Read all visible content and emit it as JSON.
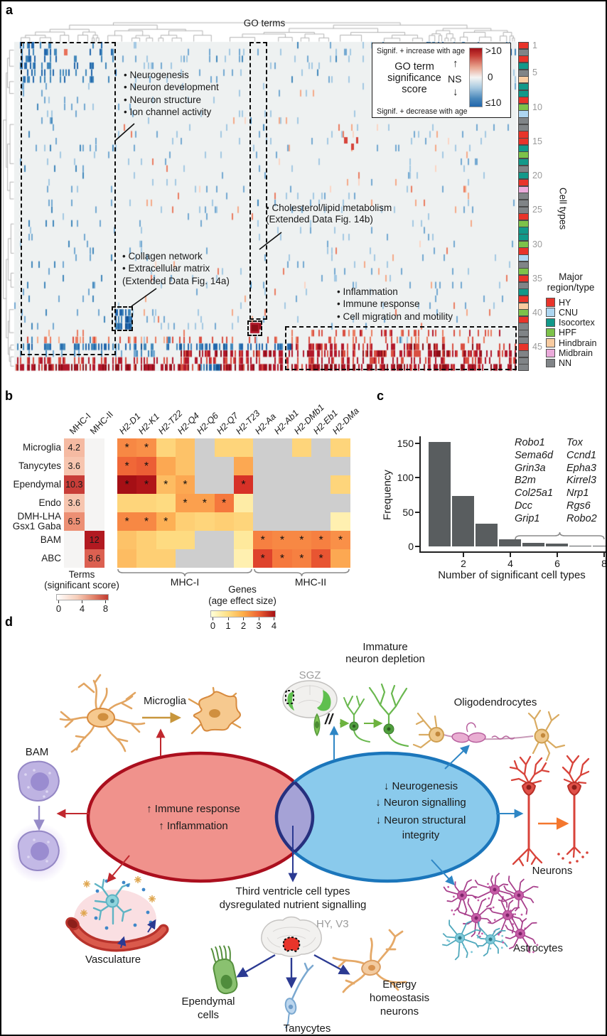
{
  "panel_a": {
    "label": "a",
    "go_terms_label": "GO terms",
    "cell_types_label": "Cell types",
    "row_ticks": [
      "1",
      "5",
      "10",
      "15",
      "20",
      "25",
      "30",
      "35",
      "40",
      "45"
    ],
    "legend": {
      "increase": "Signif. + increase with age",
      "decrease": "Signif. + decrease with age",
      "title": "GO term\nsignificance\nscore",
      "ns": "NS",
      "up": "↑",
      "down": "↓",
      "scale_max": ">10",
      "scale_mid": "0",
      "scale_min": "≤10"
    },
    "annotations": {
      "neuro": [
        "• Neurogenesis",
        "• Neuron development",
        "• Neuron structure",
        "• Ion channel activity"
      ],
      "collagen": [
        "• Collagen network",
        "• Extracellular matrix",
        "(Extended Data Fig. 14a)"
      ],
      "cholesterol": [
        "• Cholesterol/lipid metabolism",
        "(Extended Data Fig. 14b)"
      ],
      "inflammation": [
        "• Inflammation",
        "• Immune response",
        "• Cell migration and motility"
      ]
    },
    "region_legend": {
      "title": "Major\nregion/type",
      "items": [
        {
          "label": "HY",
          "color": "#e8342a"
        },
        {
          "label": "CNU",
          "color": "#aed6f1"
        },
        {
          "label": "Isocortex",
          "color": "#12998a"
        },
        {
          "label": "HPF",
          "color": "#7dc24a"
        },
        {
          "label": "Hindbrain",
          "color": "#f8cba0"
        },
        {
          "label": "Midbrain",
          "color": "#eaaada"
        },
        {
          "label": "NN",
          "color": "#808487"
        }
      ]
    },
    "cell_type_bar": [
      "HY",
      "NN",
      "HY",
      "Isocortex",
      "NN",
      "Hindbrain",
      "Isocortex",
      "Isocortex",
      "HY",
      "HPF",
      "CNU",
      "NN",
      "NN",
      "HY",
      "HY",
      "Isocortex",
      "HPF",
      "Isocortex",
      "NN",
      "Isocortex",
      "HY",
      "Midbrain",
      "NN",
      "NN",
      "NN",
      "HY",
      "HPF",
      "Isocortex",
      "Isocortex",
      "HPF",
      "HY",
      "CNU",
      "NN",
      "HPF",
      "HY",
      "NN",
      "Isocortex",
      "HY",
      "Hindbrain",
      "HPF",
      "HY",
      "NN",
      "NN",
      "NN",
      "HY",
      "NN",
      "NN",
      "NN"
    ]
  },
  "panel_b": {
    "label": "b",
    "group_labels": [
      "MHC-I",
      "MHC-II"
    ],
    "terms_legend": {
      "title": "Terms",
      "subtitle": "(significant score)",
      "ticks": [
        "0",
        "4",
        "8"
      ]
    },
    "genes_legend": {
      "title": "Genes",
      "subtitle": "(age effect size)",
      "ticks": [
        "0",
        "1",
        "2",
        "3",
        "4"
      ]
    }
  },
  "panel_c": {
    "label": "c"
  },
  "panel_d": {
    "label": "d",
    "labels": {
      "microglia": "Microglia",
      "bam": "BAM",
      "vasculature": "Vasculature",
      "sgz": "SGZ",
      "immature": "Immature\nneuron depletion",
      "oligodendrocytes": "Oligodendrocytes",
      "neurons": "Neurons",
      "astrocytes": "Astrocytes",
      "third_ventricle": "Third ventricle cell types\ndysregulated nutrient signalling",
      "hy_v3": "HY, V3",
      "ependymal": "Ependymal\ncells",
      "tanycytes": "Tanycytes",
      "energy": "Energy\nhomeostasis\nneurons",
      "break_symbol": "//"
    },
    "red_ellipse_items": [
      "↑ Immune response",
      "↑ Inflammation"
    ],
    "blue_ellipse_items": [
      "↓ Neurogenesis",
      "↓ Neuron signalling",
      "↓ Neuron structural\nintegrity"
    ]
  },
  "chart_data": [
    {
      "name": "go_term_significance_heatmap",
      "type": "heatmap",
      "title": "GO terms",
      "ylabel": "Cell types",
      "n_cell_types": 48,
      "colorbar_labels": {
        "max": ">10",
        "mid": "0",
        "min": "≤10"
      },
      "highlighted_clusters": [
        "Neurogenesis / Neuron development / Neuron structure / Ion channel activity (significant, decrease with age)",
        "Collagen network / Extracellular matrix (Extended Data Fig. 14a)",
        "Cholesterol/lipid metabolism (Extended Data Fig. 14b)",
        "Inflammation / Immune response / Cell migration and motility (significant, increase with age)"
      ]
    },
    {
      "name": "mhc_terms_scores",
      "type": "heatmap",
      "rows": [
        "Microglia",
        "Tanycytes",
        "Ependymal",
        "Endo",
        "DMH-LHA\nGsx1 Gaba",
        "BAM",
        "ABC"
      ],
      "columns": [
        "MHC-I",
        "MHC-II"
      ],
      "values": [
        [
          4.2,
          null
        ],
        [
          3.6,
          null
        ],
        [
          10.3,
          null
        ],
        [
          3.6,
          null
        ],
        [
          6.5,
          null
        ],
        [
          null,
          12
        ],
        [
          null,
          8.6
        ]
      ],
      "range": [
        0,
        12
      ],
      "title": "Terms (significant score)"
    },
    {
      "name": "mhc_gene_age_effect",
      "type": "heatmap",
      "rows": [
        "Microglia",
        "Tanycytes",
        "Ependymal",
        "Endo",
        "DMH-LHA\nGsx1 Gaba",
        "BAM",
        "ABC"
      ],
      "columns": [
        "H2-D1",
        "H2-K1",
        "H2-T22",
        "H2-Q4",
        "H2-Q6",
        "H2-Q7",
        "H2-T23",
        "H2-Aa",
        "H2-Ab1",
        "H2-DMb1",
        "H2-Eb1",
        "H2-DMa"
      ],
      "values": [
        [
          2.1,
          2.0,
          1.0,
          1.3,
          null,
          1.0,
          1.0,
          null,
          null,
          1.0,
          null,
          1.0
        ],
        [
          2.5,
          2.6,
          1.7,
          1.3,
          null,
          null,
          1.7,
          null,
          null,
          null,
          null,
          null
        ],
        [
          4.0,
          3.8,
          1.4,
          1.7,
          null,
          null,
          3.1,
          null,
          null,
          null,
          null,
          1.0
        ],
        [
          1.0,
          1.0,
          0.9,
          1.8,
          1.8,
          2.3,
          0.5,
          null,
          null,
          null,
          null,
          null
        ],
        [
          2.1,
          2.1,
          1.6,
          1.1,
          1.0,
          1.1,
          1.0,
          null,
          null,
          null,
          null,
          0.4
        ],
        [
          1.3,
          1.1,
          0.9,
          0.9,
          null,
          null,
          0.6,
          2.2,
          2.1,
          2.1,
          2.2,
          2.0
        ],
        [
          1.4,
          1.1,
          1.1,
          null,
          null,
          null,
          0.4,
          2.9,
          2.3,
          2.2,
          2.7,
          1.7
        ]
      ],
      "significant": [
        [
          1,
          1,
          0,
          0,
          0,
          0,
          0,
          0,
          0,
          0,
          0,
          0
        ],
        [
          1,
          1,
          0,
          0,
          0,
          0,
          0,
          0,
          0,
          0,
          0,
          0
        ],
        [
          1,
          1,
          1,
          1,
          0,
          0,
          1,
          0,
          0,
          0,
          0,
          0
        ],
        [
          0,
          0,
          0,
          1,
          1,
          1,
          0,
          0,
          0,
          0,
          0,
          0
        ],
        [
          1,
          1,
          1,
          0,
          0,
          0,
          0,
          0,
          0,
          0,
          0,
          0
        ],
        [
          0,
          0,
          0,
          0,
          0,
          0,
          0,
          1,
          1,
          1,
          1,
          1
        ],
        [
          0,
          0,
          0,
          0,
          0,
          0,
          0,
          1,
          1,
          1,
          1,
          0
        ]
      ],
      "range": [
        0,
        4
      ],
      "groups": {
        "MHC-I": [
          0,
          6
        ],
        "MHC-II": [
          7,
          11
        ]
      },
      "title": "Genes (age effect size)"
    },
    {
      "name": "significant_cell_types_histogram",
      "type": "bar",
      "categories": [
        1,
        2,
        3,
        4,
        5,
        6,
        7,
        8
      ],
      "values": [
        152,
        73,
        33,
        10,
        5,
        4,
        1,
        1
      ],
      "xlabel": "Number of significant cell types",
      "ylabel": "Frequency",
      "xticks": [
        2,
        4,
        6,
        8
      ],
      "yticks": [
        0,
        50,
        100,
        150
      ],
      "ylim": [
        0,
        160
      ],
      "gene_annotations_col1": [
        "Robo1",
        "Sema6d",
        "Grin3a",
        "B2m",
        "Col25a1",
        "Dcc",
        "Grip1"
      ],
      "gene_annotations_col2": [
        "Tox",
        "Ccnd1",
        "Epha3",
        "Kirrel3",
        "Nrp1",
        "Rgs6",
        "Robo2"
      ]
    }
  ]
}
